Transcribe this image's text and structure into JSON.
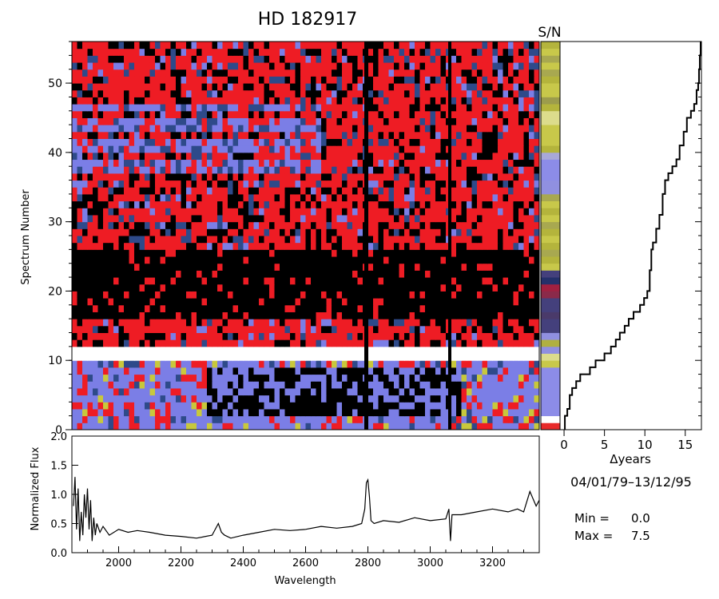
{
  "title": "HD  182917",
  "sn_label": "S/N",
  "date_range": "04/01/79–13/12/95",
  "min_label": "Min =",
  "min_value": "0.0",
  "max_label": "Max =",
  "max_value": "7.5",
  "chart_data": [
    {
      "type": "heatmap",
      "title": "HD  182917",
      "ylabel": "Spectrum Number",
      "ylim": [
        0,
        56
      ],
      "yticks": [
        "0",
        "10",
        "20",
        "30",
        "40",
        "50"
      ],
      "xlim": [
        1850,
        3350
      ],
      "colormap": [
        "#000000",
        "#ee1c24",
        "#7b7ee6",
        "#2e4a8a",
        "#c8c83c",
        "#ffffff"
      ]
    },
    {
      "type": "heatmap",
      "title": "S/N",
      "ylim": [
        0,
        56
      ],
      "colors": [
        "#e82a2a",
        "#ffffff",
        "#8c8ce8",
        "#8c8ce8",
        "#8c8ce8",
        "#8c8ce8",
        "#8c8ce8",
        "#8c8ce8",
        "#8c8ce8",
        "#c8c84a",
        "#dcdc8c",
        "#9090e0",
        "#b0b040",
        "#9090e0",
        "#44407c",
        "#44407c",
        "#4a3a6a",
        "#44407c",
        "#44407c",
        "#8a2a4a",
        "#a02040",
        "#24306a",
        "#44407c",
        "#c8c84a",
        "#b4b43c",
        "#a8a850",
        "#b4b43c",
        "#c8c84a",
        "#b4b43c",
        "#a8a850",
        "#c8c84a",
        "#b4b43c",
        "#c8c84a",
        "#a8a850",
        "#9090e0",
        "#9090e0",
        "#8c8ce8",
        "#8c8ce8",
        "#8c8ce8",
        "#a8a8d8",
        "#b4b43c",
        "#c8c84a",
        "#c8c84a",
        "#c8c84a",
        "#dcdc8c",
        "#dcdc8c",
        "#b4b43c",
        "#9c9c4c",
        "#c8c84a",
        "#c8c84a",
        "#b4b43c",
        "#a8a850",
        "#c8c84a",
        "#a8a850",
        "#c8c84a",
        "#b4b43c"
      ]
    },
    {
      "type": "line",
      "xlabel": "Δyears",
      "xlim": [
        -0.5,
        17
      ],
      "xticks": [
        "0",
        "5",
        "10",
        "15"
      ],
      "ylim": [
        0,
        56
      ],
      "x": [
        0.1,
        0.4,
        0.7,
        1.0,
        1.5,
        2.0,
        3.2,
        3.9,
        5.0,
        5.8,
        6.4,
        6.9,
        7.5,
        8.0,
        8.6,
        9.4,
        9.9,
        10.3,
        10.6,
        10.8,
        11.0,
        11.4,
        11.8,
        12.2,
        12.5,
        12.9,
        13.4,
        13.9,
        14.3,
        14.8,
        15.2,
        15.7,
        16.1,
        16.4,
        16.6,
        16.7,
        16.8,
        16.9
      ],
      "y": [
        2,
        3,
        5,
        6,
        7,
        8,
        9,
        10,
        11,
        12,
        13,
        14,
        15,
        16,
        17,
        18,
        19,
        20,
        23,
        26,
        27,
        29,
        31,
        34,
        36,
        37,
        38,
        39,
        41,
        43,
        45,
        46,
        47,
        49,
        50,
        52,
        54,
        56
      ]
    },
    {
      "type": "line",
      "xlabel": "Wavelength",
      "ylabel": "Normalized Flux",
      "xlim": [
        1850,
        3350
      ],
      "ylim": [
        0,
        2
      ],
      "xticks": [
        "2000",
        "2200",
        "2400",
        "2600",
        "2800",
        "3000",
        "3200"
      ],
      "yticks": [
        "0.0",
        "0.5",
        "1.0",
        "1.5",
        "2.0"
      ],
      "x": [
        1855,
        1860,
        1865,
        1870,
        1875,
        1880,
        1885,
        1890,
        1895,
        1900,
        1905,
        1910,
        1915,
        1920,
        1925,
        1930,
        1940,
        1950,
        1970,
        2000,
        2030,
        2060,
        2100,
        2150,
        2200,
        2250,
        2300,
        2320,
        2330,
        2340,
        2360,
        2400,
        2450,
        2500,
        2550,
        2600,
        2650,
        2700,
        2750,
        2780,
        2790,
        2795,
        2800,
        2805,
        2810,
        2820,
        2850,
        2900,
        2950,
        3000,
        3050,
        3060,
        3065,
        3070,
        3100,
        3150,
        3200,
        3250,
        3280,
        3300,
        3320,
        3340,
        3350
      ],
      "y": [
        0.8,
        1.3,
        0.4,
        1.1,
        0.2,
        0.7,
        0.3,
        1.0,
        0.6,
        1.1,
        0.4,
        0.9,
        0.2,
        0.6,
        0.3,
        0.5,
        0.35,
        0.45,
        0.3,
        0.4,
        0.35,
        0.38,
        0.35,
        0.3,
        0.28,
        0.25,
        0.3,
        0.5,
        0.35,
        0.3,
        0.25,
        0.3,
        0.35,
        0.4,
        0.38,
        0.4,
        0.45,
        0.42,
        0.45,
        0.5,
        0.75,
        1.2,
        1.25,
        0.95,
        0.55,
        0.5,
        0.55,
        0.52,
        0.6,
        0.55,
        0.58,
        0.75,
        0.2,
        0.65,
        0.65,
        0.7,
        0.75,
        0.7,
        0.75,
        0.7,
        1.05,
        0.8,
        0.9
      ]
    }
  ]
}
